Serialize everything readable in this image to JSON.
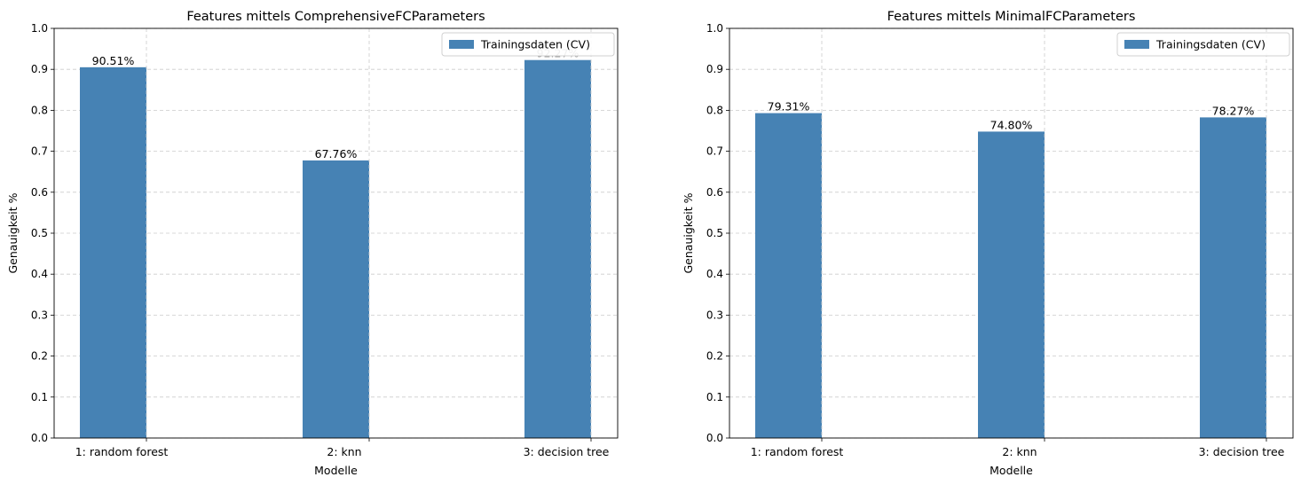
{
  "chart_data": [
    {
      "type": "bar",
      "title": "Features mittels ComprehensiveFCParameters",
      "xlabel": "Modelle",
      "ylabel": "Genauigkeit %",
      "categories": [
        "1: random forest",
        "2: knn",
        "3: decision tree"
      ],
      "series": [
        {
          "name": "Trainingsdaten (CV)",
          "values": [
            0.9051,
            0.6776,
            0.9227
          ],
          "labels": [
            "90.51%",
            "67.76%",
            "92.27%"
          ]
        }
      ],
      "ylim": [
        0,
        1.0
      ],
      "yticks": [
        "0.0",
        "0.1",
        "0.2",
        "0.3",
        "0.4",
        "0.5",
        "0.6",
        "0.7",
        "0.8",
        "0.9",
        "1.0"
      ],
      "grid": true,
      "legend": "top-right",
      "bar_color": "#4682b4"
    },
    {
      "type": "bar",
      "title": "Features mittels MinimalFCParameters",
      "xlabel": "Modelle",
      "ylabel": "Genauigkeit %",
      "categories": [
        "1: random forest",
        "2: knn",
        "3: decision tree"
      ],
      "series": [
        {
          "name": "Trainingsdaten (CV)",
          "values": [
            0.7931,
            0.748,
            0.7827
          ],
          "labels": [
            "79.31%",
            "74.80%",
            "78.27%"
          ]
        }
      ],
      "ylim": [
        0,
        1.0
      ],
      "yticks": [
        "0.0",
        "0.1",
        "0.2",
        "0.3",
        "0.4",
        "0.5",
        "0.6",
        "0.7",
        "0.8",
        "0.9",
        "1.0"
      ],
      "grid": true,
      "legend": "top-right",
      "bar_color": "#4682b4"
    }
  ]
}
